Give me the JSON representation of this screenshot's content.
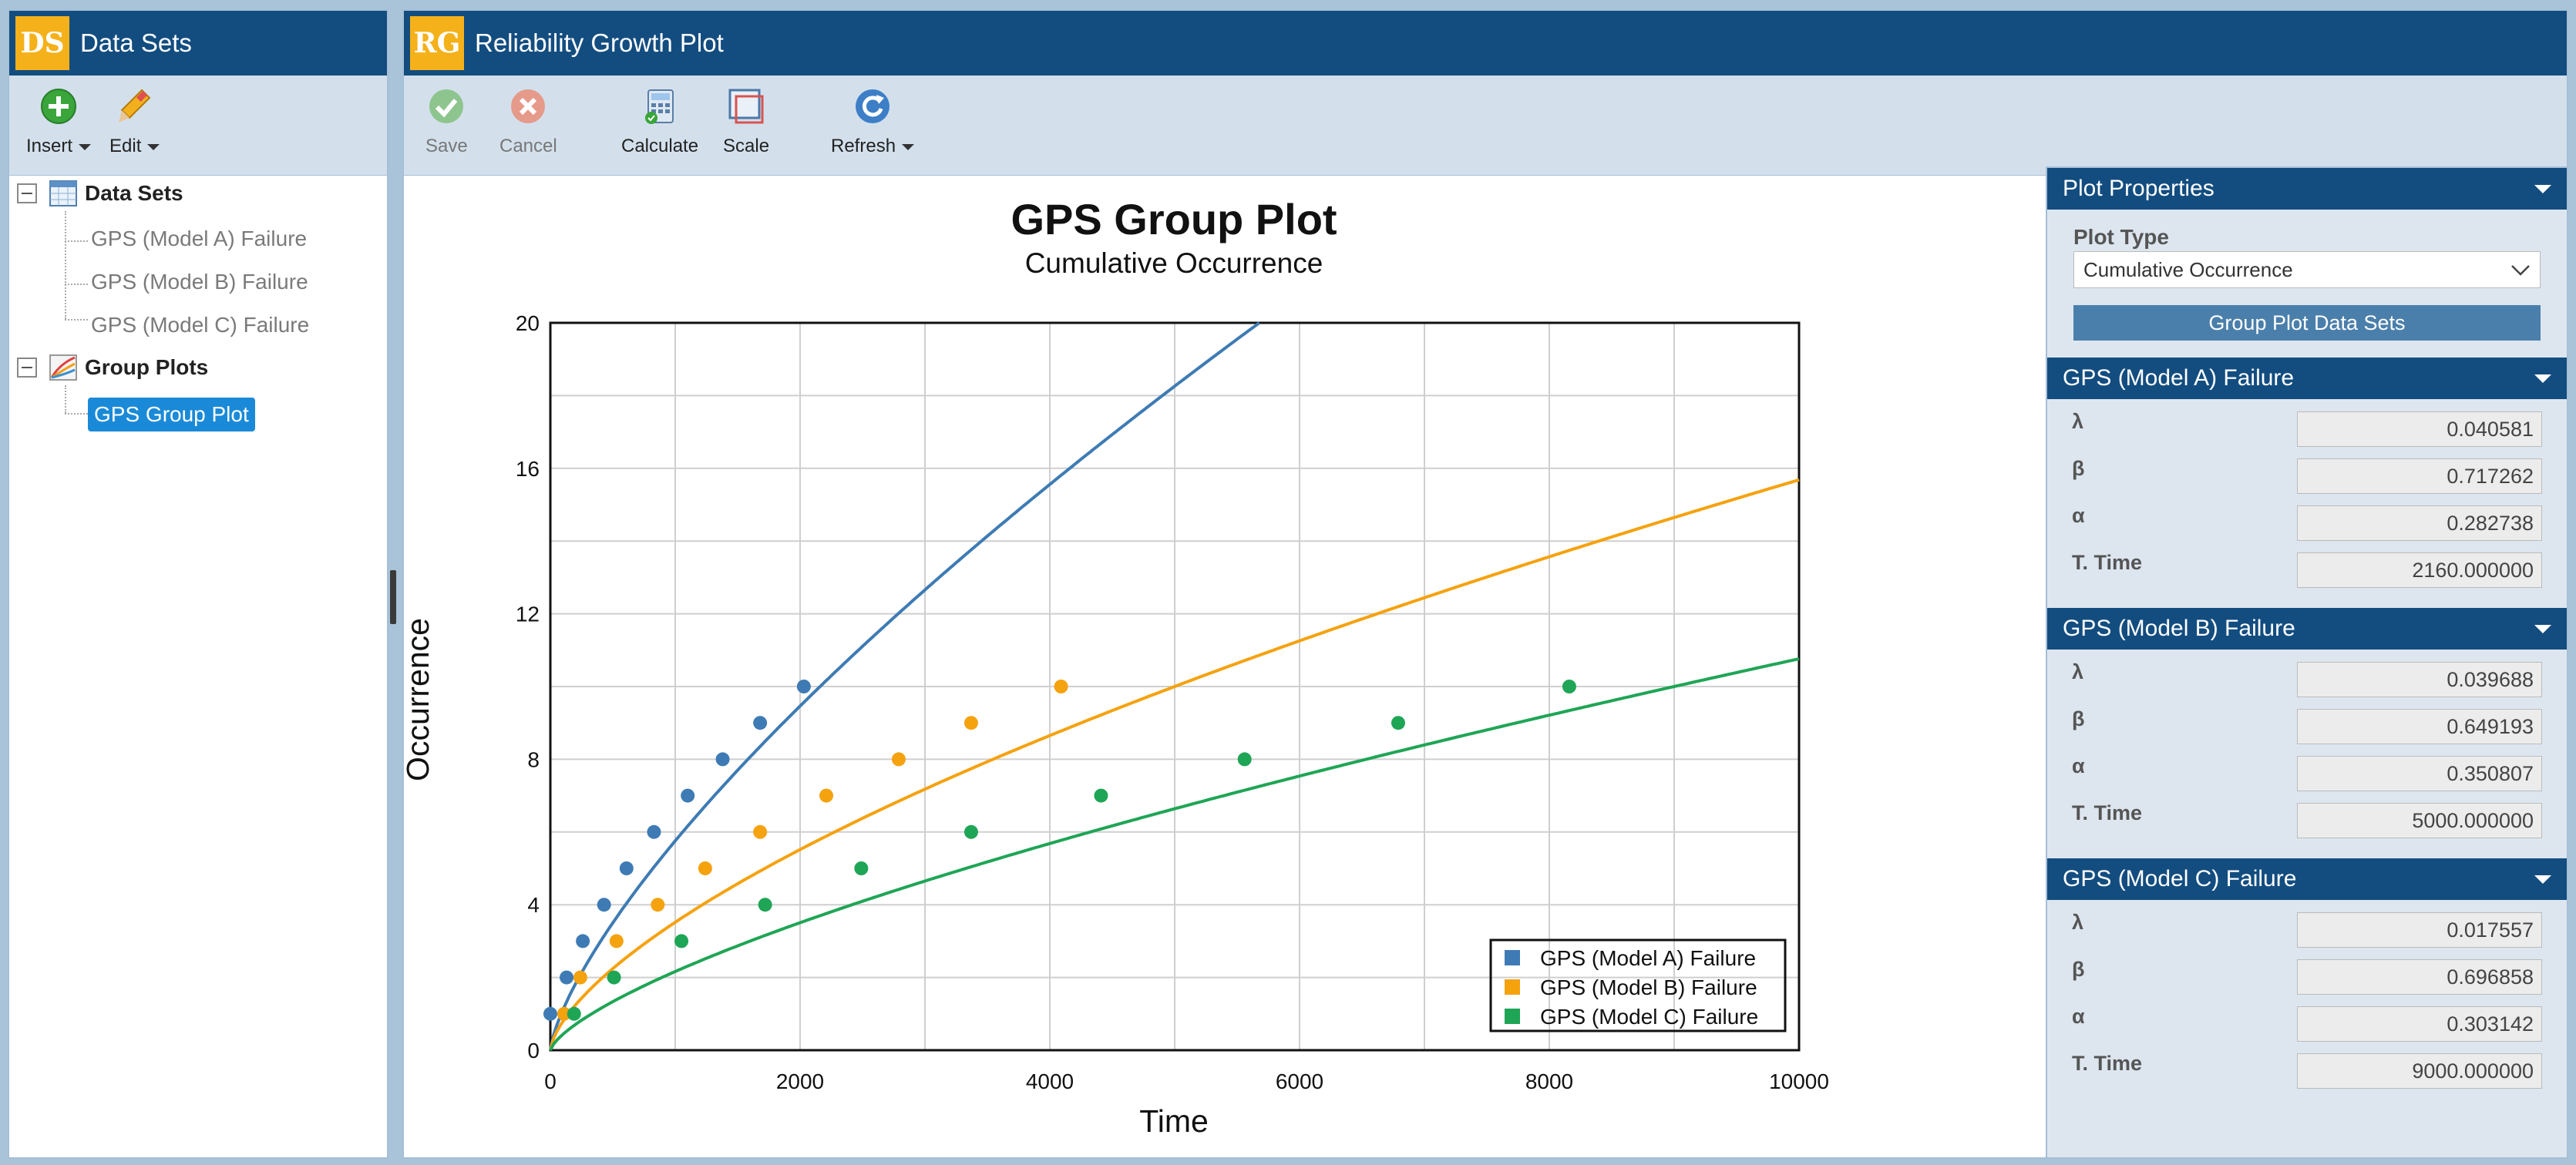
{
  "left_panel": {
    "badge": "DS",
    "title": "Data Sets",
    "toolbar": {
      "insert_label": "Insert",
      "edit_label": "Edit"
    },
    "tree": {
      "data_sets_label": "Data Sets",
      "data_sets": [
        "GPS (Model A) Failure",
        "GPS (Model B) Failure",
        "GPS (Model C) Failure"
      ],
      "group_plots_label": "Group Plots",
      "group_plot_item": "GPS Group Plot"
    }
  },
  "main_panel": {
    "badge": "RG",
    "title": "Reliability Growth Plot",
    "toolbar": {
      "save_label": "Save",
      "cancel_label": "Cancel",
      "calculate_label": "Calculate",
      "scale_label": "Scale",
      "refresh_label": "Refresh"
    }
  },
  "chart_data": {
    "type": "line",
    "title": "GPS Group Plot",
    "subtitle": "Cumulative Occurrence",
    "xlabel": "Time",
    "ylabel": "Occurrence",
    "xlim": [
      0,
      10000
    ],
    "ylim": [
      0,
      20
    ],
    "xticks": [
      0,
      2000,
      4000,
      6000,
      8000,
      10000
    ],
    "yticks": [
      0,
      4,
      8,
      12,
      16,
      20
    ],
    "grid": true,
    "legend_position": "bottom-right",
    "series": [
      {
        "name": "GPS (Model A) Failure",
        "color": "#3e7bb4",
        "lambda": 0.040581,
        "beta": 0.717262,
        "points": [
          [
            0,
            1
          ],
          [
            130,
            2
          ],
          [
            260,
            3
          ],
          [
            430,
            4
          ],
          [
            610,
            5
          ],
          [
            830,
            6
          ],
          [
            1100,
            7
          ],
          [
            1380,
            8
          ],
          [
            1680,
            9
          ],
          [
            2030,
            10
          ]
        ]
      },
      {
        "name": "GPS (Model B) Failure",
        "color": "#f5a20f",
        "lambda": 0.039688,
        "beta": 0.649193,
        "points": [
          [
            110,
            1
          ],
          [
            240,
            2
          ],
          [
            530,
            3
          ],
          [
            860,
            4
          ],
          [
            1240,
            5
          ],
          [
            1680,
            6
          ],
          [
            2210,
            7
          ],
          [
            2790,
            8
          ],
          [
            3370,
            9
          ],
          [
            4090,
            10
          ]
        ]
      },
      {
        "name": "GPS (Model C) Failure",
        "color": "#1fa556",
        "lambda": 0.017557,
        "beta": 0.696858,
        "points": [
          [
            190,
            1
          ],
          [
            510,
            2
          ],
          [
            1050,
            3
          ],
          [
            1720,
            4
          ],
          [
            2490,
            5
          ],
          [
            3370,
            6
          ],
          [
            4410,
            7
          ],
          [
            5560,
            8
          ],
          [
            6790,
            9
          ],
          [
            8160,
            10
          ]
        ]
      }
    ]
  },
  "properties": {
    "header": "Plot Properties",
    "plot_type_label": "Plot Type",
    "plot_type_value": "Cumulative Occurrence",
    "group_button": "Group Plot Data Sets",
    "labels": {
      "lambda": "λ",
      "beta": "β",
      "alpha": "α",
      "ttime": "T. Time"
    },
    "sections": [
      {
        "title": "GPS (Model A) Failure",
        "lambda": "0.040581",
        "beta": "0.717262",
        "alpha": "0.282738",
        "ttime": "2160.000000"
      },
      {
        "title": "GPS (Model B) Failure",
        "lambda": "0.039688",
        "beta": "0.649193",
        "alpha": "0.350807",
        "ttime": "5000.000000"
      },
      {
        "title": "GPS (Model C) Failure",
        "lambda": "0.017557",
        "beta": "0.696858",
        "alpha": "0.303142",
        "ttime": "9000.000000"
      }
    ]
  }
}
